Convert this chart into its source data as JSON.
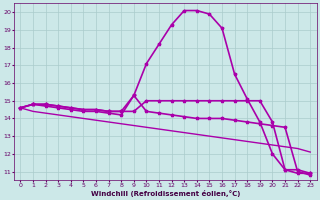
{
  "xlabel": "Windchill (Refroidissement éolien,°C)",
  "xlim": [
    -0.5,
    23.5
  ],
  "ylim": [
    10.5,
    20.5
  ],
  "yticks": [
    11,
    12,
    13,
    14,
    15,
    16,
    17,
    18,
    19,
    20
  ],
  "xticks": [
    0,
    1,
    2,
    3,
    4,
    5,
    6,
    7,
    8,
    9,
    10,
    11,
    12,
    13,
    14,
    15,
    16,
    17,
    18,
    19,
    20,
    21,
    22,
    23
  ],
  "bg_color": "#cce8e8",
  "grid_color": "#aacccc",
  "line_color": "#aa00aa",
  "lines": [
    {
      "x": [
        0,
        1,
        2,
        3,
        4,
        5,
        6,
        7,
        8,
        9,
        10,
        11,
        12,
        13,
        14,
        15,
        16,
        17,
        18,
        19,
        20,
        21,
        22,
        23
      ],
      "y": [
        14.6,
        14.8,
        14.8,
        14.7,
        14.6,
        14.5,
        14.5,
        14.4,
        14.4,
        15.3,
        17.1,
        18.2,
        19.3,
        20.1,
        20.1,
        19.9,
        19.1,
        16.5,
        15.1,
        13.8,
        12.0,
        11.1,
        10.9,
        10.9
      ],
      "marker": true,
      "lw": 1.2
    },
    {
      "x": [
        0,
        1,
        2,
        3,
        4,
        5,
        6,
        7,
        8,
        9,
        10,
        11,
        12,
        13,
        14,
        15,
        16,
        17,
        18,
        19,
        20,
        21,
        22,
        23
      ],
      "y": [
        14.6,
        14.8,
        14.8,
        14.7,
        14.6,
        14.5,
        14.5,
        14.4,
        14.4,
        14.4,
        15.0,
        15.0,
        15.0,
        15.0,
        15.0,
        15.0,
        15.0,
        15.0,
        15.0,
        15.0,
        13.8,
        11.1,
        11.1,
        10.9
      ],
      "marker": true,
      "lw": 1.2
    },
    {
      "x": [
        0,
        1,
        2,
        3,
        4,
        5,
        6,
        7,
        8,
        9,
        10,
        11,
        12,
        13,
        14,
        15,
        16,
        17,
        18,
        19,
        20,
        21,
        22,
        23
      ],
      "y": [
        14.6,
        14.8,
        14.7,
        14.6,
        14.5,
        14.4,
        14.4,
        14.3,
        14.2,
        15.3,
        14.4,
        14.3,
        14.2,
        14.1,
        14.0,
        14.0,
        14.0,
        13.9,
        13.8,
        13.7,
        13.6,
        13.5,
        11.0,
        10.8
      ],
      "marker": true,
      "lw": 1.2
    },
    {
      "x": [
        0,
        1,
        2,
        3,
        4,
        5,
        6,
        7,
        8,
        9,
        10,
        11,
        12,
        13,
        14,
        15,
        16,
        17,
        18,
        19,
        20,
        21,
        22,
        23
      ],
      "y": [
        14.6,
        14.4,
        14.3,
        14.2,
        14.1,
        14.0,
        13.9,
        13.8,
        13.7,
        13.6,
        13.5,
        13.4,
        13.3,
        13.2,
        13.1,
        13.0,
        12.9,
        12.8,
        12.7,
        12.6,
        12.5,
        12.4,
        12.3,
        12.1
      ],
      "marker": false,
      "lw": 1.0
    }
  ]
}
